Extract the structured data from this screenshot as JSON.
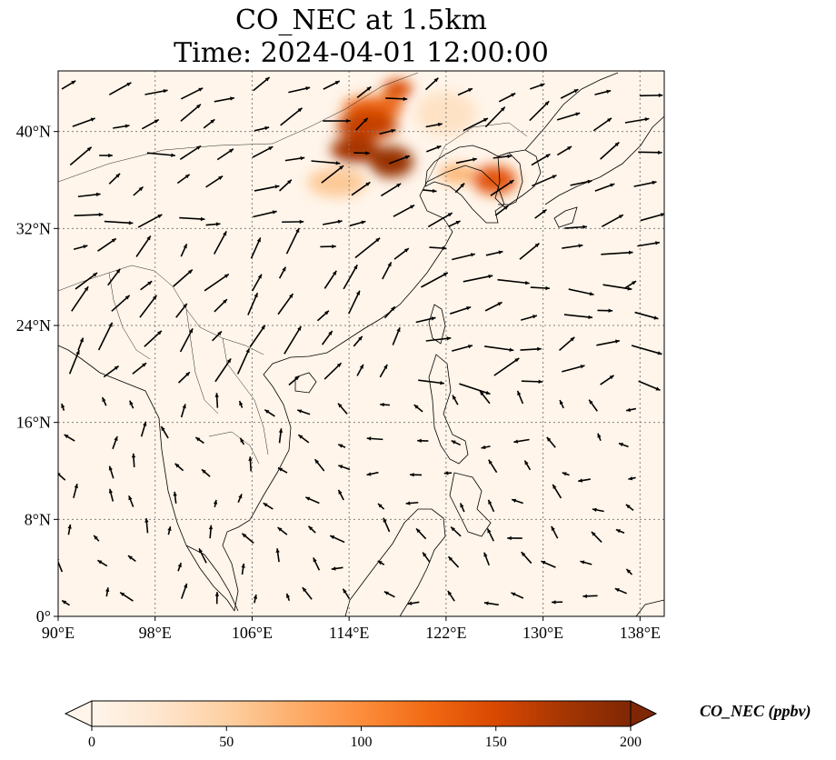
{
  "title_line1": "CO_NEC at 1.5km",
  "title_line2": "Time: 2024-04-01 12:00:00",
  "map": {
    "lon_range": [
      90,
      140
    ],
    "lat_range": [
      0,
      45
    ],
    "lon_ticks": [
      90,
      98,
      106,
      114,
      122,
      130,
      138
    ],
    "lon_tick_labels": [
      "90°E",
      "98°E",
      "106°E",
      "114°E",
      "122°E",
      "130°E",
      "138°E"
    ],
    "lat_ticks": [
      0,
      8,
      16,
      24,
      32,
      40
    ],
    "lat_tick_labels": [
      "0°",
      "8°N",
      "16°N",
      "24°N",
      "32°N",
      "40°N"
    ],
    "gridlines": true,
    "background_color": "#fff5ea",
    "plumes": [
      {
        "lon": 115.5,
        "lat": 40.5,
        "rx": 2.5,
        "ry": 1.2,
        "value": 160
      },
      {
        "lon": 114.5,
        "lat": 38.5,
        "rx": 2.0,
        "ry": 1.1,
        "value": 175
      },
      {
        "lon": 117.5,
        "lat": 37.5,
        "rx": 1.8,
        "ry": 1.3,
        "value": 185
      },
      {
        "lon": 116.0,
        "lat": 42.0,
        "rx": 2.5,
        "ry": 0.9,
        "value": 130
      },
      {
        "lon": 118.0,
        "lat": 43.5,
        "rx": 1.2,
        "ry": 0.8,
        "value": 150
      },
      {
        "lon": 126.0,
        "lat": 36.0,
        "rx": 1.8,
        "ry": 1.2,
        "value": 140
      },
      {
        "lon": 113.0,
        "lat": 35.8,
        "rx": 2.4,
        "ry": 1.2,
        "value": 55
      },
      {
        "lon": 123.0,
        "lat": 36.5,
        "rx": 1.6,
        "ry": 0.8,
        "value": 70
      },
      {
        "lon": 122.0,
        "lat": 41.5,
        "rx": 2.5,
        "ry": 1.8,
        "value": 30
      }
    ]
  },
  "colorbar": {
    "label": "CO_NEC (ppbv)",
    "min": 0,
    "max": 200,
    "ticks": [
      0,
      50,
      100,
      150,
      200
    ],
    "tick_labels": [
      "0",
      "50",
      "100",
      "150",
      "200"
    ],
    "colors": [
      "#fff5eb",
      "#fee6ce",
      "#fdd0a2",
      "#fdae6b",
      "#fd8d3c",
      "#f16913",
      "#d94801",
      "#a63603",
      "#7f2704"
    ]
  }
}
